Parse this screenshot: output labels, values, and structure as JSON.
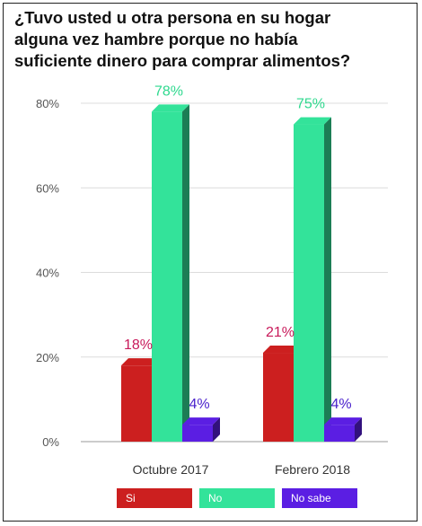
{
  "chart_data": {
    "type": "bar",
    "title": "¿Tuvo usted u otra persona en su hogar\nalguna vez hambre porque no había\nsuficiente dinero para comprar alimentos?",
    "categories": [
      "Octubre 2017",
      "Febrero 2018"
    ],
    "series": [
      {
        "name": "Si",
        "values": [
          18,
          21
        ],
        "labels": [
          "18%",
          "21%"
        ],
        "color": "#cc1f1f",
        "label_color": "#c8195a"
      },
      {
        "name": "No",
        "values": [
          78,
          75
        ],
        "labels": [
          "78%",
          "75%"
        ],
        "color": "#33e39a",
        "label_color": "#2fd98f"
      },
      {
        "name": "No sabe",
        "values": [
          4,
          4
        ],
        "labels": [
          "4%",
          "4%"
        ],
        "color": "#5b1ee3",
        "label_color": "#4a22cc"
      }
    ],
    "ylim": [
      0,
      80
    ],
    "yticks": [
      0,
      20,
      40,
      60,
      80
    ],
    "ytick_labels": [
      "0%",
      "20%",
      "40%",
      "60%",
      "80%"
    ],
    "grid": true,
    "legend": "bottom"
  }
}
